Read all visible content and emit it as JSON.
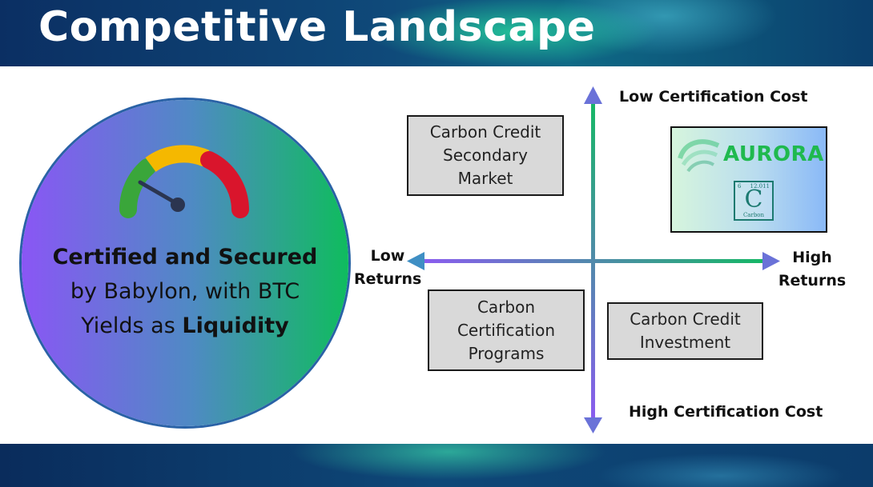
{
  "title": "Competitive Landscape",
  "circle": {
    "bold_line": "Certified and Secured",
    "line2": "by Babylon, with BTC",
    "line3_pre": "Yields as ",
    "line3_bold": "Liquidity"
  },
  "axes": {
    "top": "Low Certification Cost",
    "bottom": "High Certification Cost",
    "left": "Low\nReturns",
    "right": "High\nReturns"
  },
  "quadrants": [
    {
      "text": "Carbon Credit\nSecondary\nMarket"
    },
    {
      "text": "Carbon\nCertification\nPrograms"
    },
    {
      "text": "Carbon Credit\nInvestment"
    }
  ],
  "aurora": {
    "wordmark": "AURORA",
    "element": {
      "number": "6",
      "mass": "12.011",
      "symbol": "C",
      "name": "Carbon"
    }
  },
  "colors": {
    "gauge_green": "#3aa63a",
    "gauge_yellow": "#f5b800",
    "gauge_red": "#d9152c",
    "aurora_green": "#1fb94e"
  }
}
